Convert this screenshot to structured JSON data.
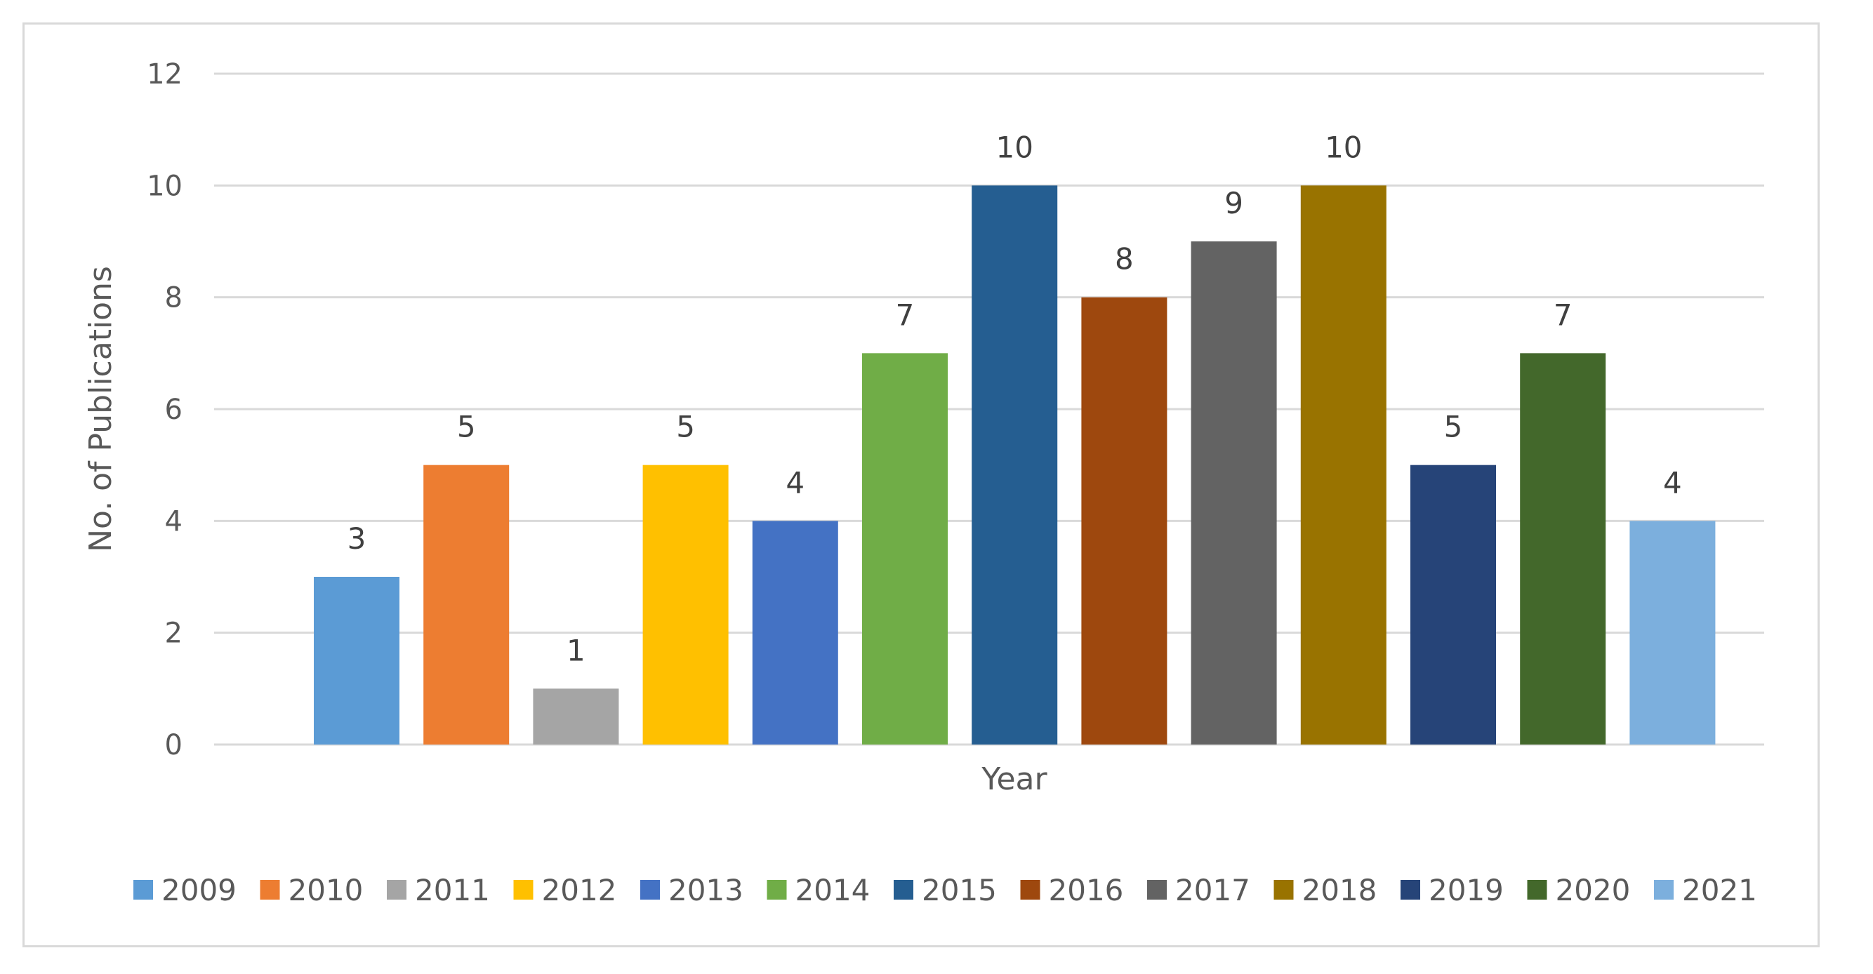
{
  "chart_data": {
    "type": "bar",
    "title": "",
    "xlabel": "Year",
    "ylabel": "No. of Publications",
    "ylim": [
      0,
      12
    ],
    "yticks": [
      0,
      2,
      4,
      6,
      8,
      10,
      12
    ],
    "grid": true,
    "legend_position": "bottom",
    "series": [
      {
        "name": "2009",
        "value": 3,
        "color": "#5B9BD5"
      },
      {
        "name": "2010",
        "value": 5,
        "color": "#ED7D31"
      },
      {
        "name": "2011",
        "value": 1,
        "color": "#A5A5A5"
      },
      {
        "name": "2012",
        "value": 5,
        "color": "#FFC000"
      },
      {
        "name": "2013",
        "value": 4,
        "color": "#4472C4"
      },
      {
        "name": "2014",
        "value": 7,
        "color": "#70AD47"
      },
      {
        "name": "2015",
        "value": 10,
        "color": "#255E91"
      },
      {
        "name": "2016",
        "value": 8,
        "color": "#9E480E"
      },
      {
        "name": "2017",
        "value": 9,
        "color": "#636363"
      },
      {
        "name": "2018",
        "value": 10,
        "color": "#997300"
      },
      {
        "name": "2019",
        "value": 5,
        "color": "#264478"
      },
      {
        "name": "2020",
        "value": 7,
        "color": "#43682B"
      },
      {
        "name": "2021",
        "value": 4,
        "color": "#7CAFDD"
      }
    ]
  },
  "colors": {
    "gridline": "#d9d9d9",
    "axis_text": "#595959",
    "data_label_text": "#404040",
    "frame_border": "#d9d9d9"
  }
}
